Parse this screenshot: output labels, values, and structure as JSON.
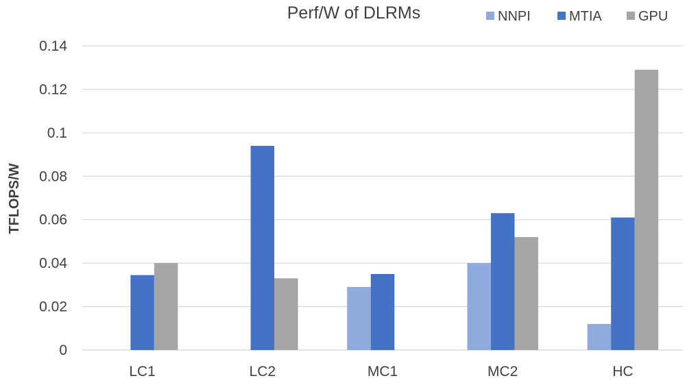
{
  "chart_data": {
    "type": "bar",
    "title": "Perf/W of DLRMs",
    "xlabel": "",
    "ylabel": "TFLOPS/W",
    "categories": [
      "LC1",
      "LC2",
      "MC1",
      "MC2",
      "HC"
    ],
    "series": [
      {
        "name": "NNPI",
        "values": [
          null,
          null,
          0.029,
          0.04,
          0.012
        ],
        "color": "#8faadc"
      },
      {
        "name": "MTIA",
        "values": [
          0.0345,
          0.094,
          0.035,
          0.063,
          0.061
        ],
        "color": "#4472c4"
      },
      {
        "name": "GPU",
        "values": [
          0.04,
          0.033,
          null,
          0.052,
          0.129
        ],
        "color": "#a5a5a5"
      }
    ],
    "ylim": [
      0,
      0.14
    ],
    "yticks": [
      0,
      0.02,
      0.04,
      0.06,
      0.08,
      0.1,
      0.12,
      0.14
    ],
    "ytick_labels": [
      "0",
      "0.02",
      "0.04",
      "0.06",
      "0.08",
      "0.1",
      "0.12",
      "0.14"
    ],
    "grid": true,
    "legend_position": "top-right"
  }
}
